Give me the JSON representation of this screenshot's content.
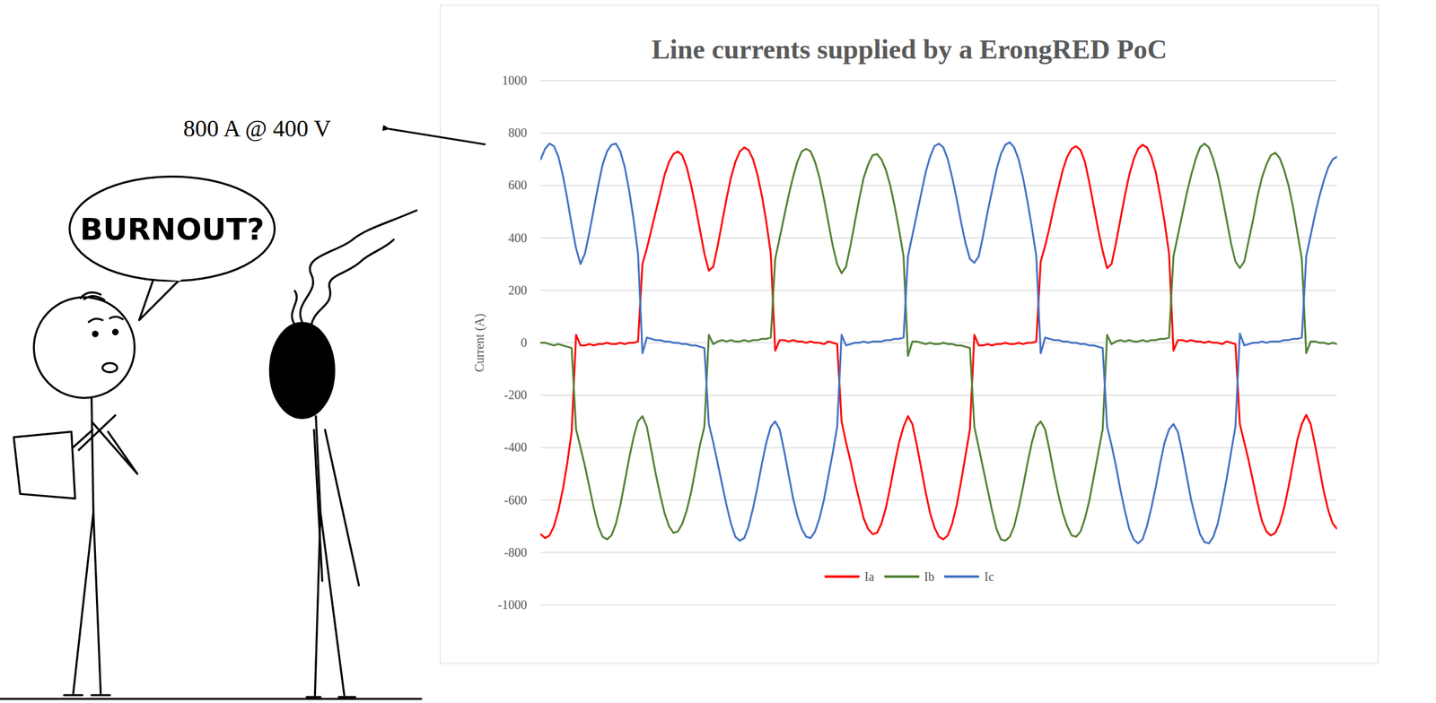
{
  "chart_data": {
    "type": "line",
    "title": "Line currents supplied by a ErongRED PoC",
    "y_label": "Current (A)",
    "annotations": [
      "800 A @ 400 V",
      "BURNOUT?"
    ],
    "x": [
      0,
      5,
      10,
      15,
      20,
      25,
      30,
      35,
      40,
      45,
      50,
      55,
      60,
      65,
      70,
      75,
      80,
      85,
      90,
      95,
      100,
      105,
      110,
      115,
      120,
      125,
      130,
      135,
      140,
      145,
      150,
      155,
      160,
      165,
      170,
      175,
      180,
      185,
      190,
      195,
      200,
      205,
      210,
      215,
      220,
      225,
      230,
      235,
      240,
      245,
      250,
      255,
      260,
      265,
      270,
      275,
      280,
      285,
      290,
      295,
      300,
      305,
      310,
      315,
      320,
      325,
      330,
      335,
      340,
      345,
      350,
      355,
      360,
      365,
      370,
      375,
      380,
      385,
      390,
      395,
      400,
      405,
      410,
      415,
      420,
      425,
      430,
      435,
      440,
      445,
      450,
      455,
      460,
      465,
      470,
      475,
      480,
      485,
      490,
      495,
      500,
      505,
      510,
      515,
      520,
      525,
      530,
      535,
      540,
      545,
      550,
      555,
      560,
      565,
      570,
      575,
      580,
      585,
      590,
      595,
      600,
      605,
      610,
      615,
      620,
      625,
      630,
      635,
      640,
      645,
      650,
      655,
      660,
      665,
      670,
      675,
      680,
      685,
      690,
      695,
      700,
      705,
      710,
      715,
      720,
      725,
      730,
      735,
      740,
      745,
      750,
      755,
      760,
      765,
      770,
      775,
      780,
      785,
      790,
      795,
      800,
      805,
      810,
      815,
      820,
      825,
      830,
      835,
      840,
      845,
      850,
      855,
      860,
      865,
      870,
      875,
      880,
      885,
      890,
      895,
      900
    ],
    "series": [
      {
        "name": "Ia",
        "color": "#ff0000",
        "values": [
          -730,
          -745,
          -735,
          -700,
          -640,
          -560,
          -460,
          -340,
          30,
          -10,
          -10,
          -5,
          -10,
          -5,
          -5,
          0,
          -5,
          -5,
          0,
          -5,
          0,
          0,
          5,
          300,
          360,
          430,
          500,
          570,
          640,
          690,
          720,
          730,
          715,
          670,
          600,
          520,
          430,
          340,
          275,
          290,
          370,
          460,
          550,
          630,
          690,
          730,
          745,
          735,
          700,
          640,
          560,
          460,
          340,
          -30,
          10,
          10,
          5,
          10,
          5,
          5,
          0,
          5,
          0,
          0,
          -5,
          5,
          0,
          -5,
          -300,
          -380,
          -450,
          -530,
          -600,
          -670,
          -710,
          -730,
          -725,
          -690,
          -630,
          -550,
          -460,
          -380,
          -320,
          -280,
          -310,
          -390,
          -480,
          -570,
          -650,
          -705,
          -740,
          -750,
          -735,
          -690,
          -620,
          -530,
          -430,
          -330,
          30,
          -10,
          -10,
          -5,
          -10,
          -5,
          -5,
          0,
          -5,
          -5,
          0,
          -5,
          0,
          0,
          5,
          310,
          370,
          440,
          520,
          590,
          660,
          710,
          740,
          750,
          735,
          690,
          610,
          520,
          430,
          350,
          285,
          300,
          380,
          470,
          560,
          640,
          700,
          740,
          755,
          745,
          710,
          650,
          560,
          460,
          340,
          -30,
          10,
          10,
          5,
          10,
          5,
          5,
          0,
          5,
          0,
          0,
          -5,
          5,
          0,
          -5,
          -310,
          -380,
          -450,
          -530,
          -610,
          -680,
          -720,
          -735,
          -725,
          -690,
          -630,
          -550,
          -460,
          -370,
          -310,
          -275,
          -310,
          -390,
          -480,
          -570,
          -640,
          -690,
          -710
        ]
      },
      {
        "name": "Ib",
        "color": "#538135",
        "values": [
          0,
          0,
          -5,
          -10,
          -5,
          -10,
          -15,
          -20,
          -330,
          -400,
          -470,
          -550,
          -630,
          -700,
          -740,
          -750,
          -735,
          -690,
          -620,
          -530,
          -440,
          -360,
          -300,
          -280,
          -320,
          -410,
          -500,
          -580,
          -650,
          -700,
          -725,
          -720,
          -690,
          -640,
          -570,
          -480,
          -390,
          -320,
          30,
          -5,
          5,
          10,
          5,
          10,
          5,
          5,
          10,
          5,
          10,
          10,
          15,
          15,
          20,
          320,
          400,
          480,
          560,
          630,
          690,
          730,
          740,
          730,
          690,
          630,
          550,
          460,
          370,
          300,
          265,
          290,
          370,
          460,
          550,
          630,
          680,
          715,
          720,
          700,
          660,
          600,
          520,
          430,
          330,
          -50,
          5,
          5,
          0,
          -5,
          0,
          -5,
          -5,
          0,
          -5,
          -5,
          -10,
          -10,
          -15,
          -20,
          -320,
          -400,
          -480,
          -560,
          -640,
          -710,
          -750,
          -755,
          -740,
          -700,
          -630,
          -550,
          -460,
          -380,
          -320,
          -300,
          -330,
          -410,
          -500,
          -580,
          -650,
          -700,
          -735,
          -740,
          -720,
          -670,
          -600,
          -510,
          -420,
          -330,
          30,
          -5,
          5,
          10,
          5,
          10,
          5,
          5,
          10,
          5,
          10,
          10,
          15,
          15,
          20,
          330,
          410,
          490,
          570,
          640,
          700,
          745,
          760,
          745,
          700,
          640,
          560,
          470,
          380,
          310,
          285,
          310,
          390,
          470,
          560,
          630,
          680,
          715,
          725,
          705,
          660,
          600,
          520,
          420,
          320,
          -40,
          5,
          5,
          0,
          0,
          -5,
          0,
          -5
        ]
      },
      {
        "name": "Ic",
        "color": "#4472c4",
        "values": [
          700,
          740,
          760,
          750,
          710,
          640,
          550,
          450,
          360,
          300,
          340,
          420,
          510,
          600,
          680,
          730,
          755,
          760,
          730,
          670,
          580,
          470,
          340,
          -40,
          20,
          15,
          10,
          10,
          5,
          5,
          0,
          0,
          -5,
          -5,
          -10,
          -10,
          -15,
          -20,
          -310,
          -380,
          -460,
          -540,
          -620,
          -690,
          -740,
          -755,
          -745,
          -700,
          -630,
          -550,
          -460,
          -380,
          -320,
          -300,
          -330,
          -410,
          -500,
          -590,
          -660,
          -710,
          -740,
          -745,
          -720,
          -670,
          -600,
          -510,
          -420,
          -320,
          30,
          -10,
          -5,
          0,
          0,
          5,
          0,
          5,
          5,
          5,
          10,
          10,
          15,
          15,
          20,
          330,
          410,
          490,
          570,
          650,
          710,
          750,
          760,
          745,
          700,
          630,
          550,
          460,
          380,
          320,
          305,
          330,
          410,
          500,
          580,
          660,
          720,
          755,
          765,
          745,
          700,
          630,
          540,
          440,
          330,
          -40,
          20,
          15,
          10,
          10,
          5,
          5,
          0,
          0,
          -5,
          -5,
          -10,
          -10,
          -15,
          -20,
          -320,
          -390,
          -470,
          -560,
          -640,
          -710,
          -750,
          -765,
          -750,
          -700,
          -630,
          -550,
          -460,
          -380,
          -330,
          -310,
          -340,
          -420,
          -510,
          -600,
          -670,
          -730,
          -760,
          -765,
          -740,
          -690,
          -610,
          -520,
          -420,
          -320,
          35,
          -10,
          -5,
          0,
          0,
          5,
          0,
          5,
          5,
          5,
          10,
          10,
          15,
          15,
          20,
          330,
          410,
          490,
          560,
          620,
          670,
          700,
          710
        ]
      }
    ],
    "xlim": [
      0,
      900
    ],
    "ylim": [
      -1000,
      1000
    ],
    "yticks": [
      -1000,
      -800,
      -600,
      -400,
      -200,
      0,
      200,
      400,
      600,
      800,
      1000
    ],
    "grid": true,
    "legend": "bottom",
    "tick_labels": "y"
  }
}
